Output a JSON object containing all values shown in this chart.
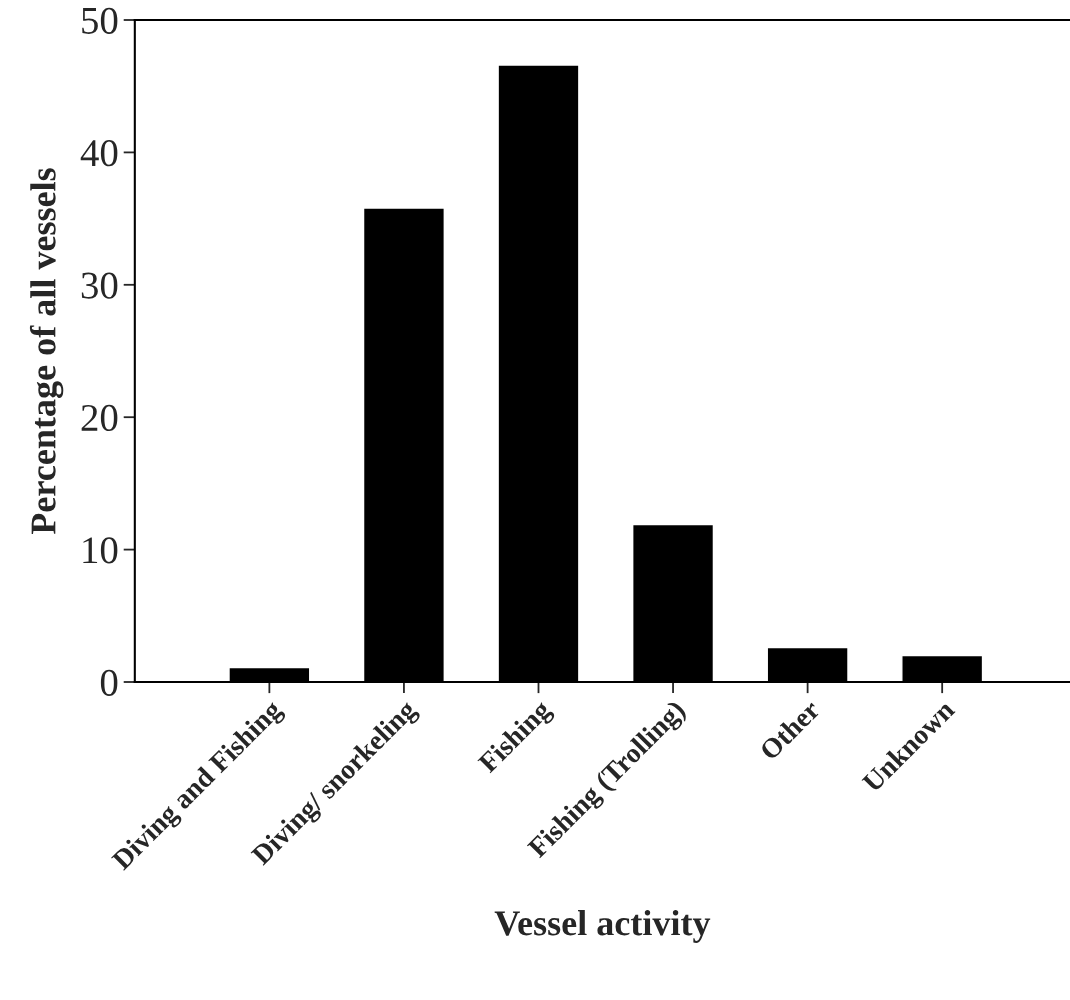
{
  "chart_data": {
    "type": "bar",
    "categories": [
      "Diving and Fishing",
      "Diving/ snorkeling",
      "Fishing",
      "Fishing (Trolling)",
      "Other",
      "Unknown"
    ],
    "values": [
      1.1,
      35.8,
      46.6,
      11.9,
      2.6,
      2.0
    ],
    "color": "#000000",
    "xlabel": "Vessel activity",
    "ylabel": "Percentage of all vessels",
    "ylim": [
      0,
      50
    ],
    "yticks": [
      0,
      10,
      20,
      30,
      40,
      50
    ],
    "grid": false
  }
}
